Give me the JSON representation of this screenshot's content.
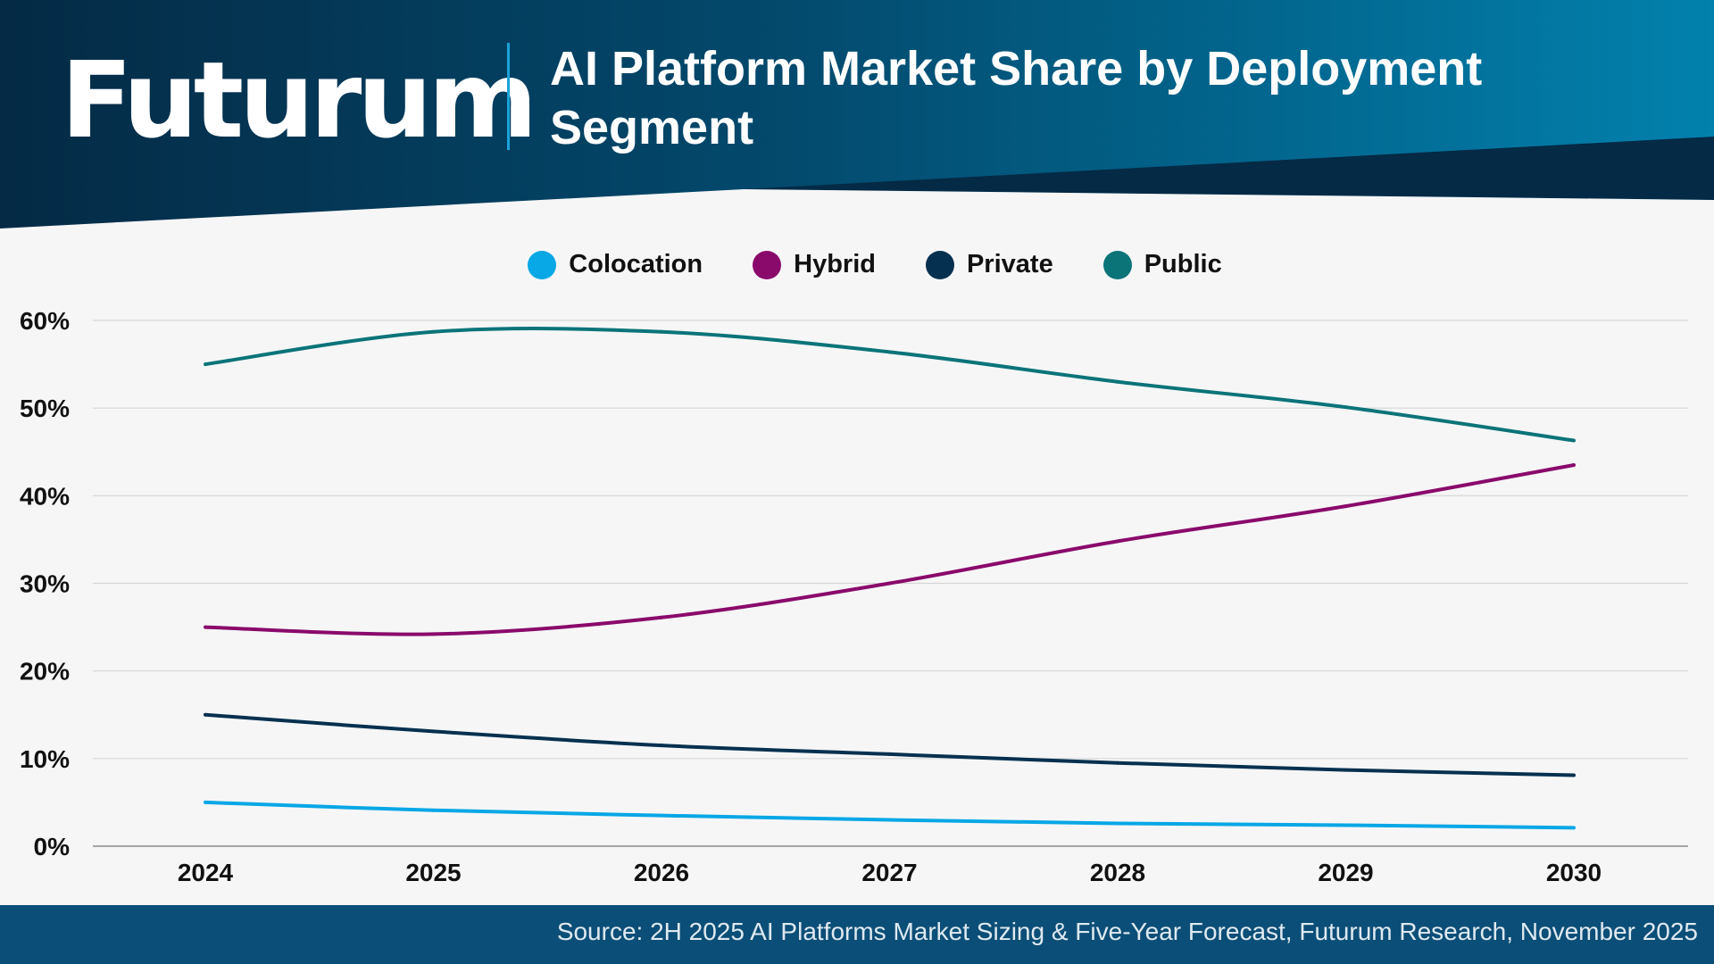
{
  "header": {
    "logo_text": "Futurum",
    "title": "AI Platform Market Share by Deployment Segment"
  },
  "colors": {
    "header_dark": "#042a45",
    "header_light": "#0281ad",
    "footer": "#0b4e77",
    "background": "#f6f6f7"
  },
  "footer": {
    "source": "Source: 2H 2025 AI Platforms Market Sizing & Five-Year Forecast, Futurum Research, November 2025"
  },
  "chart_data": {
    "type": "line",
    "title": "AI Platform Market Share by Deployment Segment",
    "xlabel": "",
    "ylabel": "",
    "x": [
      "2024",
      "2025",
      "2026",
      "2027",
      "2028",
      "2029",
      "2030"
    ],
    "ylim": [
      0,
      60
    ],
    "yticks": [
      "0%",
      "10%",
      "20%",
      "30%",
      "40%",
      "50%",
      "60%"
    ],
    "grid": true,
    "legend_position": "top-center",
    "smooth": true,
    "series": [
      {
        "name": "Colocation",
        "color": "#08a7e6",
        "values": [
          5.0,
          4.1,
          3.5,
          3.0,
          2.6,
          2.4,
          2.1
        ]
      },
      {
        "name": "Hybrid",
        "color": "#8a0a6b",
        "values": [
          25.0,
          24.2,
          26.1,
          30.0,
          34.8,
          38.8,
          43.5
        ]
      },
      {
        "name": "Private",
        "color": "#06304f",
        "values": [
          15.0,
          13.1,
          11.5,
          10.5,
          9.5,
          8.7,
          8.1
        ]
      },
      {
        "name": "Public",
        "color": "#0a7479",
        "values": [
          55.0,
          58.7,
          58.7,
          56.4,
          53.0,
          50.1,
          46.3
        ]
      }
    ]
  }
}
